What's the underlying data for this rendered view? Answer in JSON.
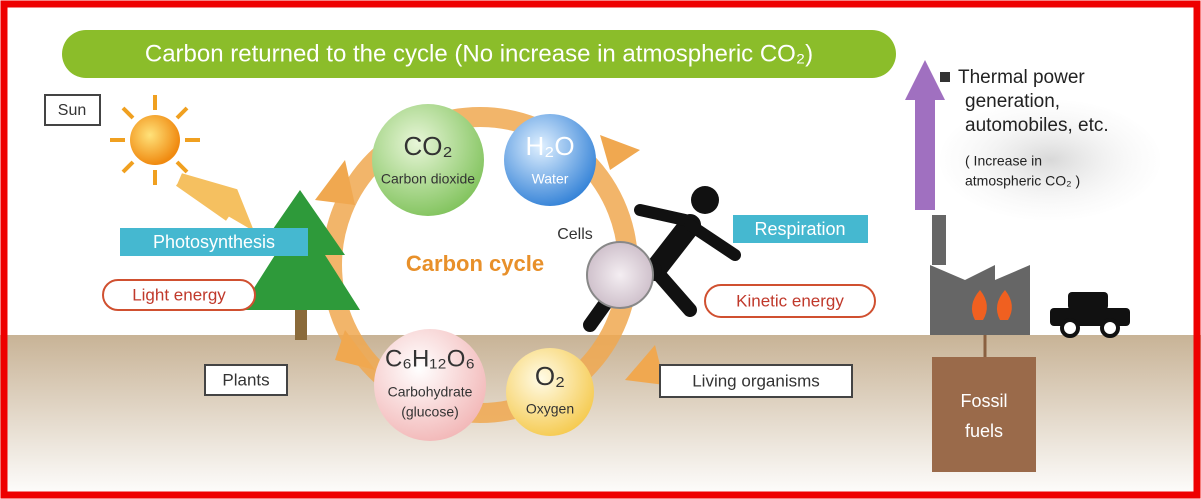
{
  "banner": "Carbon returned to the cycle (No increase in atmospheric CO₂)",
  "left": {
    "sun": "Sun",
    "photosynthesis": "Photosynthesis",
    "light_energy": "Light energy",
    "plants": "Plants"
  },
  "cycle": {
    "title": "Carbon cycle",
    "cells": "Cells",
    "nodes": [
      {
        "formula": "CO₂",
        "label": [
          "Carbon dioxide"
        ]
      },
      {
        "formula": "H₂O",
        "label": [
          "Water"
        ]
      },
      {
        "formula": "C₆H₁₂O₆",
        "label": [
          "Carbohydrate",
          "(glucose)"
        ]
      },
      {
        "formula": "O₂",
        "label": [
          "Oxygen"
        ]
      }
    ]
  },
  "right": {
    "respiration": "Respiration",
    "kinetic_energy": "Kinetic energy",
    "living_organisms": "Living organisms"
  },
  "fossil": {
    "heading": [
      "Thermal power",
      "generation,",
      "automobiles, etc."
    ],
    "note": [
      "( Increase in",
      "atmospheric CO₂ )"
    ],
    "fuels": [
      "Fossil",
      "fuels"
    ]
  }
}
